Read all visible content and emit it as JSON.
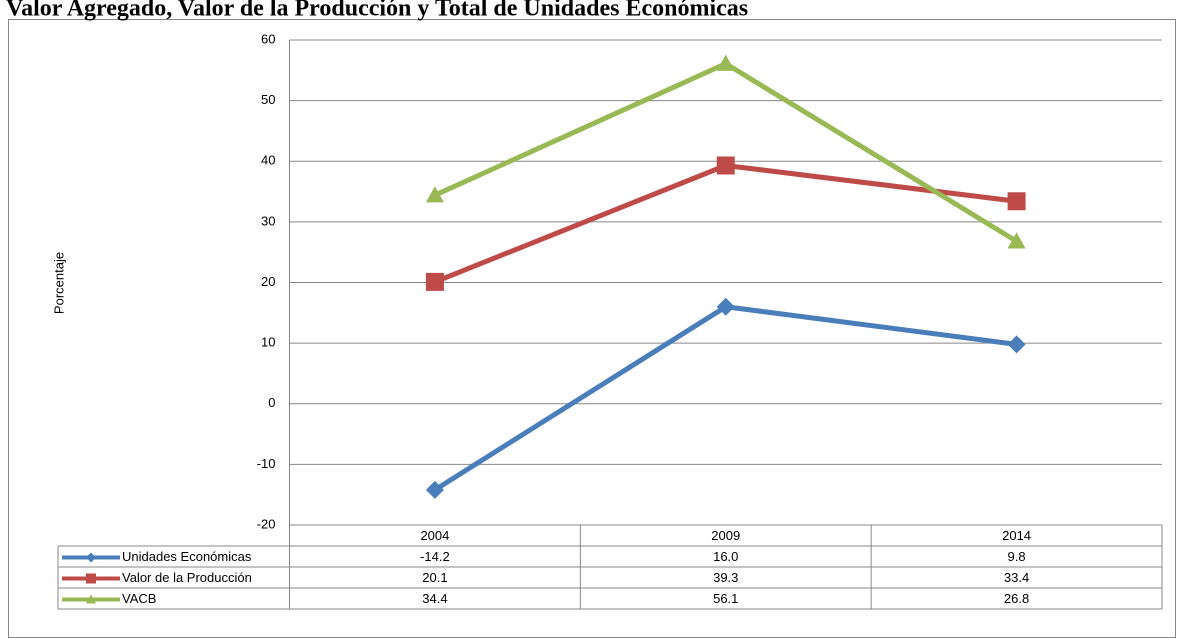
{
  "chart_data": {
    "type": "line",
    "title": "Valor Agregado, Valor de la Producción y Total de Unidades Económicas",
    "y_label": "Porcentaje",
    "categories": [
      "2004",
      "2009",
      "2014"
    ],
    "series": [
      {
        "name": "Unidades Económicas",
        "color": "#4a7ebb",
        "marker": "diamond",
        "values": [
          -14.2,
          16,
          9.8
        ],
        "value_labels": [
          "-14.2",
          "16.0",
          "9.8"
        ]
      },
      {
        "name": "Valor de la Producción",
        "color": "#be4b48",
        "marker": "square",
        "values": [
          20.1,
          39.3,
          33.4
        ],
        "value_labels": [
          "20.1",
          "39.3",
          "33.4"
        ]
      },
      {
        "name": "VACB",
        "color": "#98b954",
        "marker": "triangle",
        "values": [
          34.4,
          56.1,
          26.8
        ],
        "value_labels": [
          "34.4",
          "56.1",
          "26.8"
        ]
      }
    ],
    "ylim": [
      -20,
      60
    ],
    "yticks": [
      -20,
      -10,
      0,
      10,
      20,
      30,
      40,
      50,
      60
    ],
    "grid": true,
    "data_table": true
  }
}
